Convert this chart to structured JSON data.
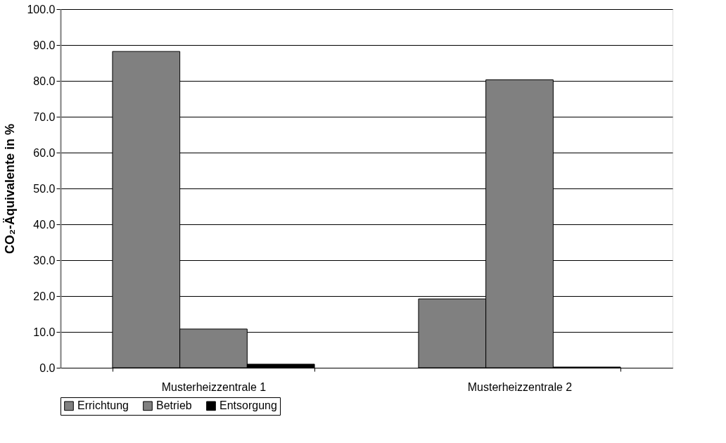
{
  "chart_data": {
    "type": "bar",
    "ylabel": "CO₂-Äquivalente in %",
    "categories": [
      "Musterheizzentrale 1",
      "Musterheizzentrale 2"
    ],
    "series": [
      {
        "name": "Errichtung",
        "color": "#808080",
        "values": [
          88.2,
          19.2
        ]
      },
      {
        "name": "Betrieb",
        "color": "#808080",
        "values": [
          10.8,
          80.3
        ]
      },
      {
        "name": "Entsorgung",
        "color": "#000000",
        "values": [
          1.0,
          0.2
        ]
      }
    ],
    "ylim": [
      0,
      100
    ],
    "yticks": [
      {
        "value": 0,
        "label": "0.0"
      },
      {
        "value": 10,
        "label": "10.0"
      },
      {
        "value": 20,
        "label": "20.0"
      },
      {
        "value": 30,
        "label": "30.0"
      },
      {
        "value": 40,
        "label": "40.0"
      },
      {
        "value": 50,
        "label": "50.0"
      },
      {
        "value": 60,
        "label": "60.0"
      },
      {
        "value": 70,
        "label": "70.0"
      },
      {
        "value": 80,
        "label": "80.0"
      },
      {
        "value": 90,
        "label": "90.0"
      },
      {
        "value": 100,
        "label": "100.0"
      }
    ],
    "grid": "y",
    "legend": "bottom left"
  }
}
